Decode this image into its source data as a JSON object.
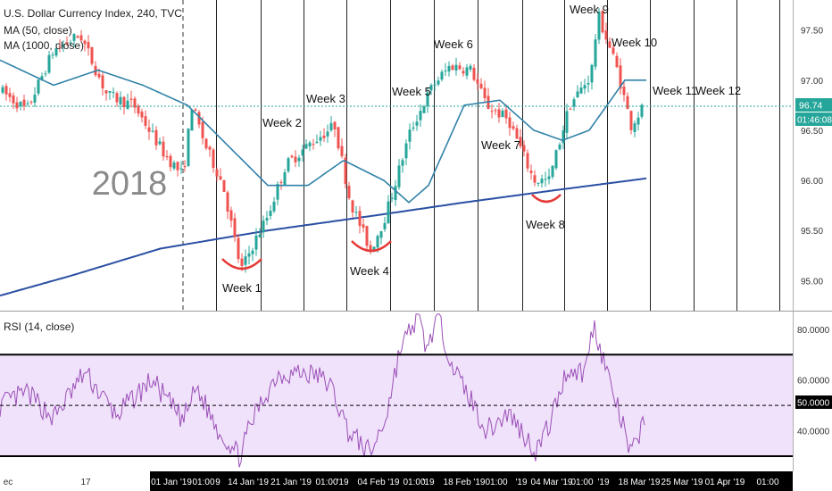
{
  "header": {
    "symbol_line": "U.S. Dollar Currency Index, 240, TVC",
    "indicators": [
      "MA (50, close)",
      "MA (1000, close)"
    ]
  },
  "rsi_header": "RSI (14, close)",
  "year_label": "2018",
  "price_badge": "96.74",
  "countdown_badge": "01:46:08",
  "rsi_badge": "50.0000",
  "colors": {
    "up": "#26a69a",
    "down": "#ef5350",
    "ma50": "#3182a8",
    "ma1000": "#2b4fa3",
    "rsi_line": "#9c4fb8",
    "rsi_band": "#efe2fa",
    "marker": "#e53935",
    "price_line": "#26a69a",
    "badge_dark": "#000000"
  },
  "price_axis": {
    "ticks": [
      "97.50",
      "97.00",
      "96.50",
      "96.00",
      "95.50",
      "95.00"
    ],
    "values": [
      97.5,
      97.0,
      96.5,
      96.0,
      95.5,
      95.0
    ]
  },
  "rsi_axis": {
    "ticks": [
      "80.0000",
      "60.0000",
      "40.0000"
    ],
    "values": [
      80,
      60,
      40
    ]
  },
  "time_axis": {
    "labels": [
      "ec",
      "17",
      "01 Jan '19",
      "01:00",
      "9",
      "14 Jan '19",
      "21 Jan '19",
      "01:00",
      "'19",
      "04 Feb '19",
      "01:00",
      "'19",
      "18 Feb '19",
      "01:00",
      "'19",
      "04 Mar '19",
      "01:00",
      "'19",
      "18 Mar '19",
      "25 Mar '19",
      "01 Apr '19",
      "01:00"
    ]
  },
  "week_labels": [
    "Week 1",
    "Week 2",
    "Week 3",
    "Week 4",
    "Week 5",
    "Week 6",
    "Week 7",
    "Week 8",
    "Week 9",
    "Week 10",
    "Week 11",
    "Week 12"
  ],
  "chart_data": {
    "type": "candlestick",
    "title": "U.S. Dollar Currency Index, 240, TVC",
    "ylim": [
      94.7,
      97.8
    ],
    "price_anchors": [
      {
        "t": 0,
        "v": 96.9
      },
      {
        "t": 30,
        "v": 96.7
      },
      {
        "t": 60,
        "v": 97.3
      },
      {
        "t": 90,
        "v": 97.45
      },
      {
        "t": 120,
        "v": 96.85
      },
      {
        "t": 150,
        "v": 96.75
      },
      {
        "t": 185,
        "v": 96.25
      },
      {
        "t": 205,
        "v": 96.05
      },
      {
        "t": 215,
        "v": 96.75
      },
      {
        "t": 230,
        "v": 96.35
      },
      {
        "t": 250,
        "v": 95.95
      },
      {
        "t": 270,
        "v": 95.1
      },
      {
        "t": 283,
        "v": 95.35
      },
      {
        "t": 300,
        "v": 95.65
      },
      {
        "t": 320,
        "v": 96.15
      },
      {
        "t": 345,
        "v": 96.35
      },
      {
        "t": 375,
        "v": 96.55
      },
      {
        "t": 392,
        "v": 95.8
      },
      {
        "t": 415,
        "v": 95.3
      },
      {
        "t": 432,
        "v": 95.65
      },
      {
        "t": 460,
        "v": 96.5
      },
      {
        "t": 485,
        "v": 96.95
      },
      {
        "t": 505,
        "v": 97.15
      },
      {
        "t": 528,
        "v": 97.1
      },
      {
        "t": 545,
        "v": 96.75
      },
      {
        "t": 570,
        "v": 96.6
      },
      {
        "t": 598,
        "v": 96.0
      },
      {
        "t": 615,
        "v": 96.0
      },
      {
        "t": 638,
        "v": 96.75
      },
      {
        "t": 662,
        "v": 97.05
      },
      {
        "t": 670,
        "v": 97.65
      },
      {
        "t": 690,
        "v": 97.15
      },
      {
        "t": 707,
        "v": 96.55
      },
      {
        "t": 722,
        "v": 96.75
      }
    ],
    "ma1000": [
      {
        "t": 0,
        "v": 94.85
      },
      {
        "t": 80,
        "v": 95.05
      },
      {
        "t": 180,
        "v": 95.32
      },
      {
        "t": 300,
        "v": 95.5
      },
      {
        "t": 420,
        "v": 95.65
      },
      {
        "t": 520,
        "v": 95.78
      },
      {
        "t": 620,
        "v": 95.9
      },
      {
        "t": 724,
        "v": 96.02
      }
    ],
    "ma50": [
      {
        "t": 0,
        "v": 97.2
      },
      {
        "t": 60,
        "v": 96.95
      },
      {
        "t": 110,
        "v": 97.1
      },
      {
        "t": 160,
        "v": 96.95
      },
      {
        "t": 210,
        "v": 96.75
      },
      {
        "t": 255,
        "v": 96.35
      },
      {
        "t": 300,
        "v": 95.95
      },
      {
        "t": 345,
        "v": 95.95
      },
      {
        "t": 385,
        "v": 96.2
      },
      {
        "t": 430,
        "v": 96.0
      },
      {
        "t": 458,
        "v": 95.78
      },
      {
        "t": 480,
        "v": 95.95
      },
      {
        "t": 520,
        "v": 96.75
      },
      {
        "t": 560,
        "v": 96.8
      },
      {
        "t": 598,
        "v": 96.5
      },
      {
        "t": 630,
        "v": 96.4
      },
      {
        "t": 660,
        "v": 96.5
      },
      {
        "t": 700,
        "v": 97.0
      },
      {
        "t": 724,
        "v": 97.0
      }
    ],
    "rsi": {
      "ylim": [
        24,
        87
      ],
      "levels": {
        "overbought": 70,
        "midline": 50,
        "oversold": 30
      },
      "anchors": [
        {
          "t": 0,
          "v": 50
        },
        {
          "t": 30,
          "v": 55
        },
        {
          "t": 60,
          "v": 45
        },
        {
          "t": 95,
          "v": 63
        },
        {
          "t": 130,
          "v": 46
        },
        {
          "t": 170,
          "v": 60
        },
        {
          "t": 205,
          "v": 44
        },
        {
          "t": 220,
          "v": 57
        },
        {
          "t": 245,
          "v": 40
        },
        {
          "t": 268,
          "v": 30
        },
        {
          "t": 285,
          "v": 46
        },
        {
          "t": 310,
          "v": 62
        },
        {
          "t": 330,
          "v": 63
        },
        {
          "t": 355,
          "v": 62
        },
        {
          "t": 370,
          "v": 58
        },
        {
          "t": 390,
          "v": 40
        },
        {
          "t": 415,
          "v": 31
        },
        {
          "t": 432,
          "v": 45
        },
        {
          "t": 448,
          "v": 72
        },
        {
          "t": 468,
          "v": 85
        },
        {
          "t": 478,
          "v": 72
        },
        {
          "t": 490,
          "v": 85
        },
        {
          "t": 510,
          "v": 63
        },
        {
          "t": 528,
          "v": 52
        },
        {
          "t": 545,
          "v": 40
        },
        {
          "t": 570,
          "v": 47
        },
        {
          "t": 600,
          "v": 32
        },
        {
          "t": 615,
          "v": 42
        },
        {
          "t": 635,
          "v": 64
        },
        {
          "t": 655,
          "v": 63
        },
        {
          "t": 665,
          "v": 82
        },
        {
          "t": 685,
          "v": 57
        },
        {
          "t": 696,
          "v": 44
        },
        {
          "t": 707,
          "v": 30
        },
        {
          "t": 722,
          "v": 45
        }
      ]
    },
    "annotations": {
      "dashed_divider_t": 205,
      "week_lines_t": [
        242,
        292,
        340,
        388,
        437,
        486,
        535,
        585,
        632,
        680,
        728,
        777,
        825,
        873
      ],
      "dip_markers_t": [
        271,
        416,
        612
      ],
      "last_price": 96.74
    },
    "time_labels_t": [
      9,
      96,
      192,
      228,
      244,
      278,
      326,
      366,
      384,
      424,
      464,
      480,
      520,
      556,
      584,
      618,
      652,
      676,
      716,
      764,
      812,
      860
    ]
  }
}
